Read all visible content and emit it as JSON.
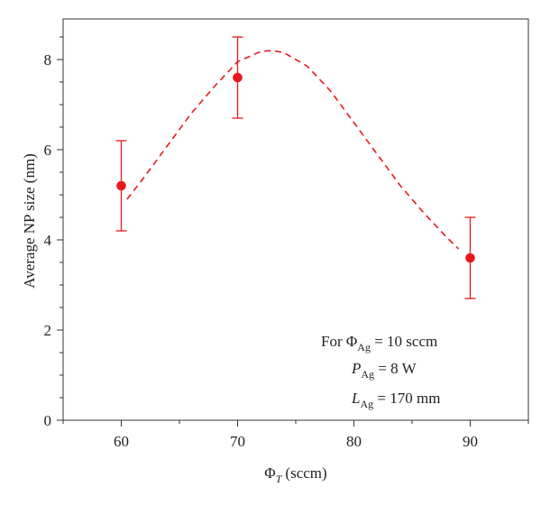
{
  "chart_data": {
    "type": "scatter",
    "xlabel": {
      "base": "Φ",
      "sub": "T",
      "unit": "(sccm)"
    },
    "ylabel": "Average NP size (nm)",
    "xlim": [
      55,
      95
    ],
    "ylim": [
      0,
      8.9
    ],
    "x_ticks": [
      60,
      70,
      80,
      90
    ],
    "y_ticks": [
      0,
      2,
      4,
      6,
      8
    ],
    "colors": {
      "points": "#e8191c",
      "curve": "#e8191c",
      "axis": "#333333"
    },
    "series": [
      {
        "type": "scatter_errorbar",
        "points": [
          {
            "x": 60,
            "y": 5.2,
            "err_low": 4.2,
            "err_high": 6.2
          },
          {
            "x": 70,
            "y": 7.6,
            "err_low": 6.7,
            "err_high": 8.5
          },
          {
            "x": 90,
            "y": 3.6,
            "err_low": 2.7,
            "err_high": 4.5
          }
        ]
      },
      {
        "type": "line",
        "style": "dashed",
        "x": [
          60.5,
          62,
          64,
          66,
          68,
          70,
          72,
          73,
          74,
          76,
          78,
          80,
          82,
          84,
          86,
          88,
          89
        ],
        "y": [
          4.9,
          5.4,
          6.1,
          6.8,
          7.4,
          7.95,
          8.18,
          8.2,
          8.15,
          7.85,
          7.3,
          6.6,
          5.9,
          5.2,
          4.6,
          4.05,
          3.8
        ]
      }
    ],
    "annotation": {
      "line1": {
        "prefix": "For Φ",
        "sub": "Ag",
        "suffix": " = 10 sccm"
      },
      "line2": {
        "prefix": "P",
        "sub": "Ag",
        "suffix": " = 8 W"
      },
      "line3": {
        "prefix": "L",
        "sub": "Ag",
        "suffix": " = 170 mm"
      }
    }
  }
}
